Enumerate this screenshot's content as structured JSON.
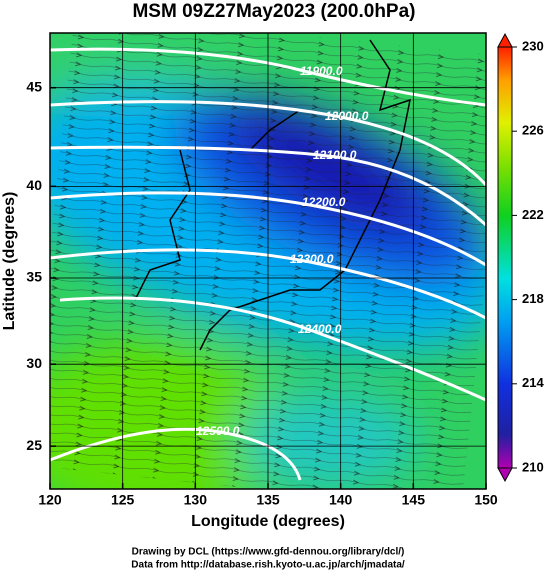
{
  "chart_data": {
    "type": "contour-map",
    "title": "MSM 09Z27May2023 (200.0hPa)",
    "x_label": "Longitude (degrees)",
    "y_label": "Latitude  (degrees)",
    "projection": "mercator",
    "xlim": [
      120,
      150
    ],
    "xticks": [
      120,
      125,
      130,
      135,
      140,
      145,
      150
    ],
    "ylim": [
      22.3,
      47.6
    ],
    "yticks": [
      25,
      30,
      35,
      40,
      45
    ],
    "grid": true,
    "colorbar": {
      "lim": [
        210,
        230
      ],
      "ticks": [
        210,
        214,
        218,
        222,
        226,
        230
      ]
    },
    "contour_labels": [
      "11900.0",
      "12000.0",
      "12100.0",
      "12200.0",
      "12300.0",
      "12400.0",
      "12500.0"
    ],
    "credits": [
      "Drawing by DCL (https://www.gfd-dennou.org/library/dcl/)",
      "Data from http://database.rish.kyoto-u.ac.jp/arch/jmadata/"
    ]
  }
}
